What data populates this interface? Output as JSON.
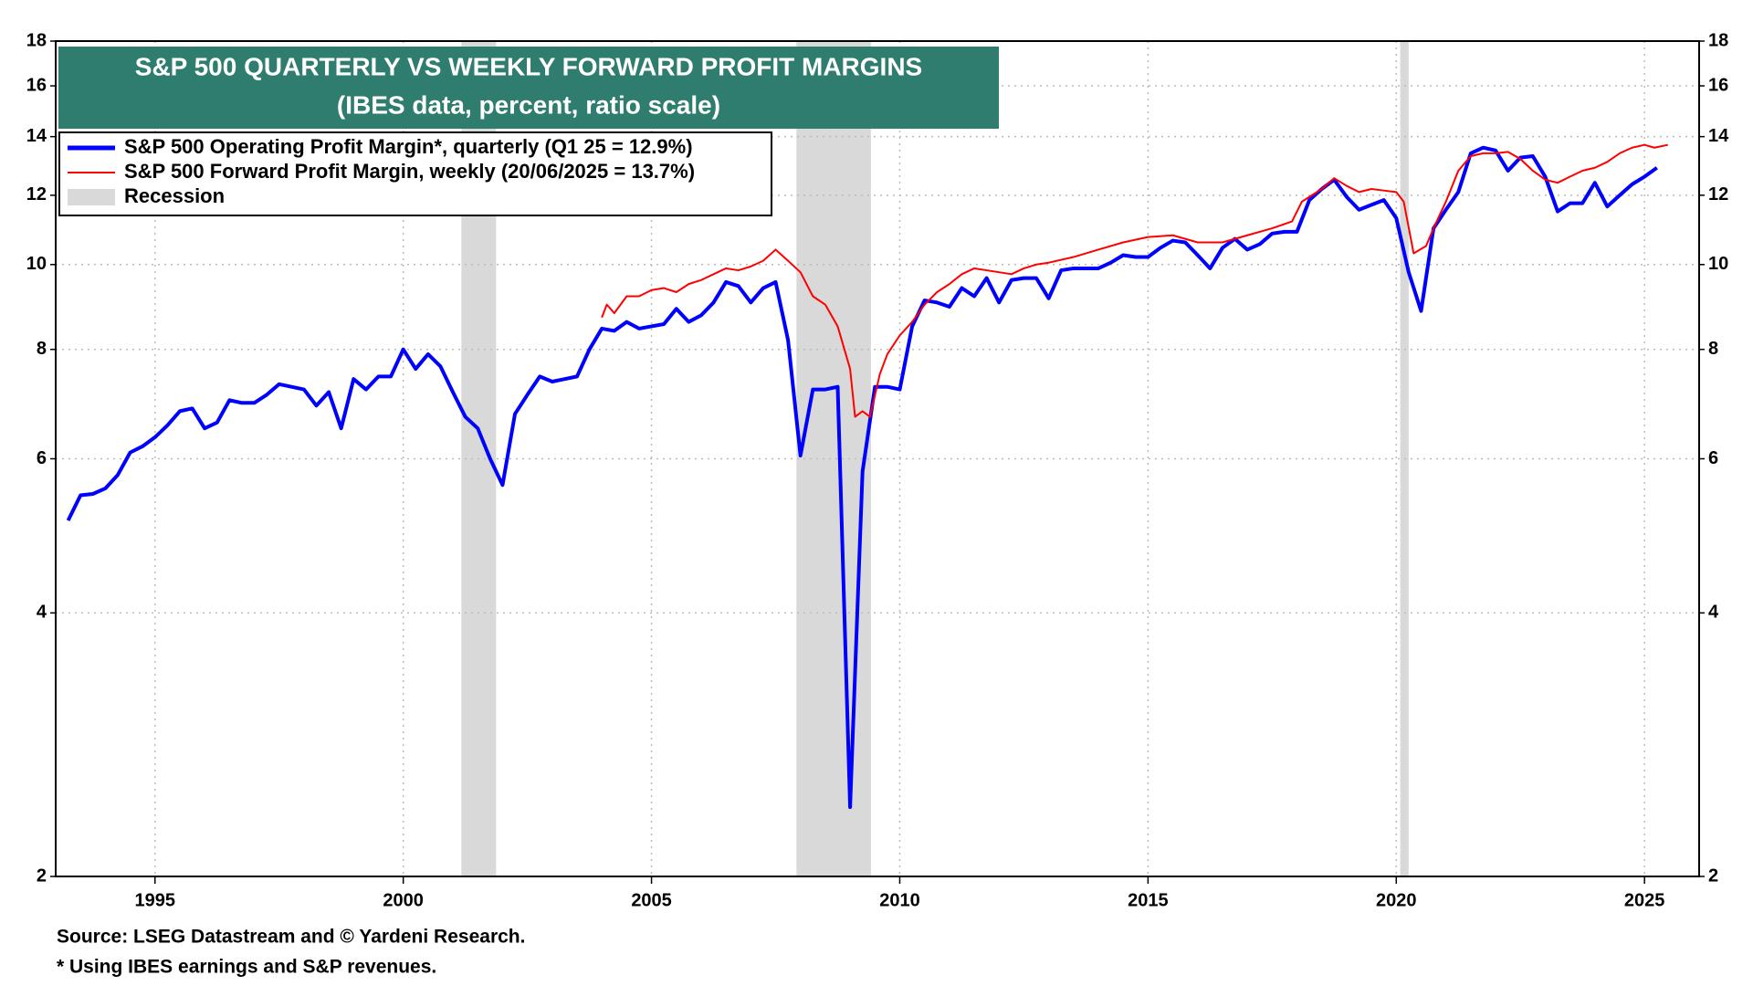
{
  "chart_data": {
    "type": "line",
    "title": "S&P 500 QUARTERLY VS WEEKLY FORWARD PROFIT MARGINS",
    "subtitle": "(IBES data, percent, ratio scale)",
    "log_scale": true,
    "grid": true,
    "legend_position": "top-left",
    "xlim": [
      1993,
      2026.1
    ],
    "xticks": [
      1995,
      2000,
      2005,
      2010,
      2015,
      2020,
      2025
    ],
    "ylim": [
      2,
      18
    ],
    "yticks": [
      2,
      4,
      6,
      8,
      10,
      12,
      14,
      16,
      18
    ],
    "recessions": {
      "name": "Recession",
      "color": "#d9d9d9",
      "periods": [
        [
          2001.17,
          2001.87
        ],
        [
          2007.92,
          2009.42
        ],
        [
          2020.08,
          2020.25
        ]
      ]
    },
    "series": [
      {
        "name": "S&P 500 Operating Profit Margin*, quarterly (Q1 25 = 12.9%)",
        "color": "#0000ff",
        "width": 4,
        "x": [
          1993.25,
          1993.5,
          1993.75,
          1994.0,
          1994.25,
          1994.5,
          1994.75,
          1995.0,
          1995.25,
          1995.5,
          1995.75,
          1996.0,
          1996.25,
          1996.5,
          1996.75,
          1997.0,
          1997.25,
          1997.5,
          1997.75,
          1998.0,
          1998.25,
          1998.5,
          1998.75,
          1999.0,
          1999.25,
          1999.5,
          1999.75,
          2000.0,
          2000.25,
          2000.5,
          2000.75,
          2001.0,
          2001.25,
          2001.5,
          2001.75,
          2002.0,
          2002.25,
          2002.5,
          2002.75,
          2003.0,
          2003.25,
          2003.5,
          2003.75,
          2004.0,
          2004.25,
          2004.5,
          2004.75,
          2005.0,
          2005.25,
          2005.5,
          2005.75,
          2006.0,
          2006.25,
          2006.5,
          2006.75,
          2007.0,
          2007.25,
          2007.5,
          2007.75,
          2008.0,
          2008.25,
          2008.5,
          2008.75,
          2009.0,
          2009.25,
          2009.5,
          2009.75,
          2010.0,
          2010.25,
          2010.5,
          2010.75,
          2011.0,
          2011.25,
          2011.5,
          2011.75,
          2012.0,
          2012.25,
          2012.5,
          2012.75,
          2013.0,
          2013.25,
          2013.5,
          2013.75,
          2014.0,
          2014.25,
          2014.5,
          2014.75,
          2015.0,
          2015.25,
          2015.5,
          2015.75,
          2016.0,
          2016.25,
          2016.5,
          2016.75,
          2017.0,
          2017.25,
          2017.5,
          2017.75,
          2018.0,
          2018.25,
          2018.5,
          2018.75,
          2019.0,
          2019.25,
          2019.5,
          2019.75,
          2020.0,
          2020.25,
          2020.5,
          2020.75,
          2021.0,
          2021.25,
          2021.5,
          2021.75,
          2022.0,
          2022.25,
          2022.5,
          2022.75,
          2023.0,
          2023.25,
          2023.5,
          2023.75,
          2024.0,
          2024.25,
          2024.5,
          2024.75,
          2025.0,
          2025.25
        ],
        "values": [
          5.1,
          5.45,
          5.47,
          5.55,
          5.75,
          6.1,
          6.2,
          6.35,
          6.55,
          6.8,
          6.85,
          6.5,
          6.6,
          7.0,
          6.95,
          6.95,
          7.1,
          7.3,
          7.25,
          7.2,
          6.9,
          7.15,
          6.5,
          7.4,
          7.2,
          7.45,
          7.45,
          8.0,
          7.6,
          7.9,
          7.65,
          7.15,
          6.7,
          6.5,
          6.0,
          5.6,
          6.75,
          7.1,
          7.45,
          7.35,
          7.4,
          7.45,
          8.0,
          8.45,
          8.4,
          8.6,
          8.45,
          8.5,
          8.55,
          8.9,
          8.6,
          8.75,
          9.05,
          9.55,
          9.45,
          9.05,
          9.4,
          9.55,
          8.2,
          6.05,
          7.2,
          7.2,
          7.25,
          2.4,
          5.8,
          7.25,
          7.25,
          7.2,
          8.5,
          9.1,
          9.05,
          8.95,
          9.4,
          9.2,
          9.65,
          9.05,
          9.6,
          9.65,
          9.65,
          9.15,
          9.85,
          9.9,
          9.9,
          9.9,
          10.05,
          10.25,
          10.2,
          10.2,
          10.45,
          10.65,
          10.6,
          10.25,
          9.9,
          10.45,
          10.7,
          10.4,
          10.55,
          10.85,
          10.9,
          10.9,
          11.85,
          12.2,
          12.5,
          11.95,
          11.55,
          11.7,
          11.85,
          11.3,
          9.8,
          8.85,
          11.0,
          11.55,
          12.1,
          13.4,
          13.6,
          13.5,
          12.8,
          13.25,
          13.3,
          12.6,
          11.5,
          11.75,
          11.75,
          12.4,
          11.65,
          12.0,
          12.35,
          12.6,
          12.9
        ]
      },
      {
        "name": "S&P 500 Forward Profit Margin, weekly (20/06/2025 = 13.7%)",
        "color": "#ff0000",
        "width": 2,
        "x": [
          2004.0,
          2004.1,
          2004.25,
          2004.5,
          2004.75,
          2005.0,
          2005.25,
          2005.5,
          2005.75,
          2006.0,
          2006.25,
          2006.5,
          2006.75,
          2007.0,
          2007.25,
          2007.5,
          2007.75,
          2008.0,
          2008.25,
          2008.5,
          2008.75,
          2009.0,
          2009.1,
          2009.25,
          2009.4,
          2009.6,
          2009.75,
          2010.0,
          2010.25,
          2010.5,
          2010.75,
          2011.0,
          2011.25,
          2011.5,
          2011.75,
          2012.0,
          2012.25,
          2012.5,
          2012.75,
          2013.0,
          2013.5,
          2014.0,
          2014.5,
          2015.0,
          2015.5,
          2016.0,
          2016.5,
          2017.0,
          2017.5,
          2017.9,
          2018.1,
          2018.5,
          2018.75,
          2019.0,
          2019.25,
          2019.5,
          2019.75,
          2020.0,
          2020.15,
          2020.35,
          2020.6,
          2020.75,
          2021.0,
          2021.25,
          2021.5,
          2021.75,
          2022.0,
          2022.25,
          2022.5,
          2022.75,
          2023.0,
          2023.25,
          2023.5,
          2023.75,
          2024.0,
          2024.25,
          2024.5,
          2024.75,
          2025.0,
          2025.2,
          2025.47
        ],
        "values": [
          8.7,
          9.0,
          8.8,
          9.2,
          9.2,
          9.35,
          9.4,
          9.3,
          9.5,
          9.6,
          9.75,
          9.9,
          9.85,
          9.95,
          10.1,
          10.4,
          10.1,
          9.8,
          9.2,
          9.0,
          8.5,
          7.6,
          6.7,
          6.8,
          6.7,
          7.5,
          7.9,
          8.3,
          8.6,
          9.0,
          9.3,
          9.5,
          9.75,
          9.9,
          9.85,
          9.8,
          9.75,
          9.9,
          10.0,
          10.05,
          10.2,
          10.4,
          10.6,
          10.75,
          10.8,
          10.6,
          10.6,
          10.8,
          11.0,
          11.2,
          11.8,
          12.2,
          12.55,
          12.3,
          12.1,
          12.2,
          12.15,
          12.1,
          11.8,
          10.3,
          10.5,
          11.0,
          11.8,
          12.8,
          13.3,
          13.4,
          13.4,
          13.45,
          13.2,
          12.8,
          12.5,
          12.4,
          12.6,
          12.8,
          12.9,
          13.1,
          13.4,
          13.6,
          13.7,
          13.6,
          13.7
        ]
      }
    ],
    "source": "Source: LSEG Datastream and © Yardeni Research.",
    "note": "* Using IBES earnings and S&P revenues."
  }
}
